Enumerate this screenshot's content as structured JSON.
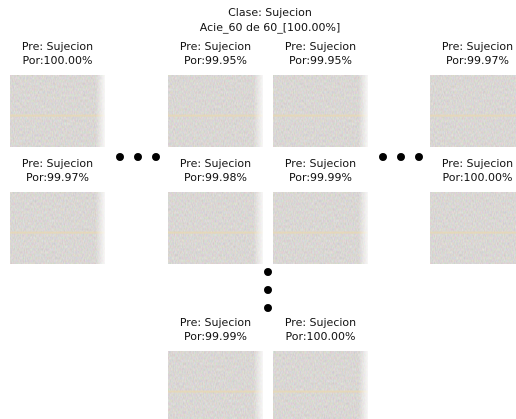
{
  "header": {
    "title": "Clase: Sujecion",
    "subtitle": "Acie_60 de 60_[100.00%]"
  },
  "tiles": [
    {
      "pred": "Pre: Sujecion",
      "por": "Por:100.00%"
    },
    {
      "pred": "Pre: Sujecion",
      "por": "Por:99.95%"
    },
    {
      "pred": "Pre: Sujecion",
      "por": "Por:99.95%"
    },
    {
      "pred": "Pre: Sujecion",
      "por": "Por:99.97%"
    },
    {
      "pred": "Pre: Sujecion",
      "por": "Por:99.97%"
    },
    {
      "pred": "Pre: Sujecion",
      "por": "Por:99.98%"
    },
    {
      "pred": "Pre: Sujecion",
      "por": "Por:99.99%"
    },
    {
      "pred": "Pre: Sujecion",
      "por": "Por:100.00%"
    },
    {
      "pred": "Pre: Sujecion",
      "por": "Por:99.99%"
    },
    {
      "pred": "Pre: Sujecion",
      "por": "Por:100.00%"
    }
  ]
}
